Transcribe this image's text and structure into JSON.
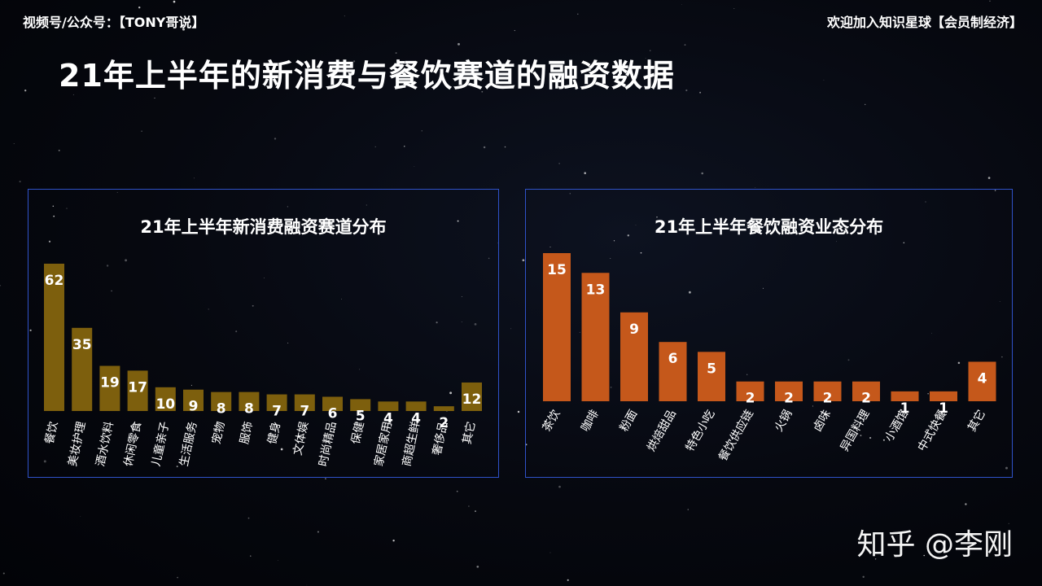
{
  "header": {
    "left_text": "视频号/公众号：【TONY哥说】",
    "right_text": "欢迎加入知识星球【会员制经济】"
  },
  "page_title": "21年上半年的新消费与餐饮赛道的融资数据",
  "watermark": "知乎 @李刚",
  "colors": {
    "left_bars": "#7d5f0d",
    "right_bars": "#c5581b",
    "panel_border": "#2f52c9"
  },
  "chart_data": [
    {
      "type": "bar",
      "title": "21年上半年新消费融资赛道分布",
      "categories": [
        "餐饮",
        "美妆护理",
        "酒水饮料",
        "休闲零食",
        "儿童亲子",
        "生活服务",
        "宠物",
        "服饰",
        "健身",
        "文体娱",
        "时尚精品",
        "保健",
        "家居家用",
        "商超生鲜",
        "奢侈品",
        "其它"
      ],
      "values": [
        62,
        35,
        19,
        17,
        10,
        9,
        8,
        8,
        7,
        7,
        6,
        5,
        4,
        4,
        2,
        12
      ],
      "xlabel": "",
      "ylabel": "",
      "ylim": [
        0,
        62
      ],
      "grid": false,
      "legend": "none"
    },
    {
      "type": "bar",
      "title": "21年上半年餐饮融资业态分布",
      "categories": [
        "茶饮",
        "咖啡",
        "粉面",
        "烘焙甜品",
        "特色小吃",
        "餐饮供应链",
        "火锅",
        "卤味",
        "异国料理",
        "小酒馆",
        "中式快餐",
        "其它"
      ],
      "values": [
        15,
        13,
        9,
        6,
        5,
        2,
        2,
        2,
        2,
        1,
        1,
        4
      ],
      "xlabel": "",
      "ylabel": "",
      "ylim": [
        0,
        15
      ],
      "grid": false,
      "legend": "none"
    }
  ]
}
